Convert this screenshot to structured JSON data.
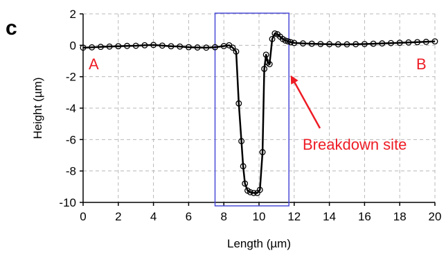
{
  "panel_label": "c",
  "chart_data": {
    "type": "line",
    "xlabel": "Length (µm)",
    "ylabel": "Height (µm)",
    "xlim": [
      0,
      20
    ],
    "ylim": [
      -10,
      2
    ],
    "xticks": [
      0,
      2,
      4,
      6,
      8,
      10,
      12,
      14,
      16,
      18,
      20
    ],
    "yticks": [
      2,
      0,
      -2,
      -4,
      -6,
      -8,
      -10
    ],
    "grid": "dashed",
    "series": [
      {
        "color": "#000000",
        "marker": "open-circle",
        "x": [
          0.0,
          0.5,
          1.0,
          1.5,
          2.0,
          2.5,
          3.0,
          3.5,
          4.0,
          4.5,
          5.0,
          5.5,
          6.0,
          6.5,
          7.0,
          7.5,
          8.0,
          8.3,
          8.5,
          8.7,
          8.85,
          9.0,
          9.1,
          9.2,
          9.35,
          9.5,
          9.7,
          9.9,
          10.05,
          10.2,
          10.3,
          10.4,
          10.5,
          10.6,
          10.75,
          10.9,
          11.05,
          11.2,
          11.35,
          11.5,
          11.65,
          11.8,
          12.0,
          12.5,
          13.0,
          13.5,
          14.0,
          14.5,
          15.0,
          15.5,
          16.0,
          16.5,
          17.0,
          17.5,
          18.0,
          18.5,
          19.0,
          19.5,
          20.0
        ],
        "y": [
          -0.15,
          -0.13,
          -0.1,
          -0.08,
          -0.06,
          -0.04,
          -0.03,
          0.0,
          0.02,
          -0.02,
          -0.06,
          -0.08,
          -0.12,
          -0.14,
          -0.15,
          -0.12,
          -0.05,
          0.0,
          -0.15,
          -0.4,
          -3.7,
          -6.1,
          -7.7,
          -8.8,
          -9.25,
          -9.35,
          -9.4,
          -9.4,
          -9.2,
          -6.8,
          -1.5,
          -0.6,
          -1.1,
          -1.2,
          0.4,
          0.75,
          0.7,
          0.55,
          0.4,
          0.3,
          0.25,
          0.2,
          0.15,
          0.12,
          0.1,
          0.08,
          0.07,
          0.06,
          0.06,
          0.07,
          0.08,
          0.1,
          0.12,
          0.14,
          0.16,
          0.18,
          0.2,
          0.22,
          0.25
        ]
      }
    ],
    "annotations": {
      "point_a": "A",
      "point_b": "B",
      "site_label": "Breakdown site",
      "highlight_x": [
        7.5,
        11.7
      ],
      "arrow_target": [
        11.7,
        -2.2
      ],
      "colors": {
        "labels": "#ee1c25",
        "box": "#4a4ad8"
      }
    }
  }
}
